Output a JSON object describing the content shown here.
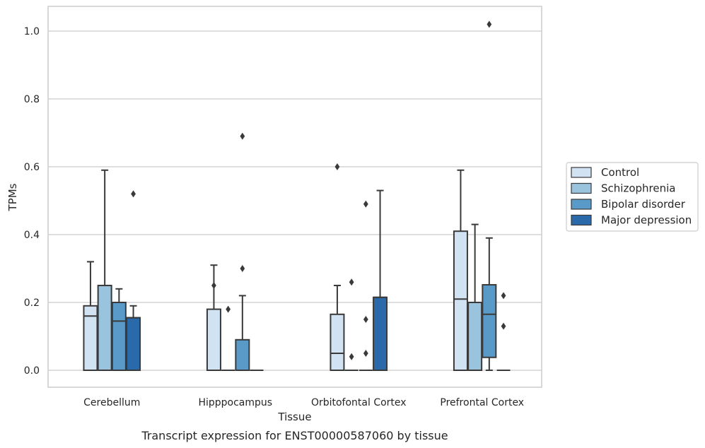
{
  "chart_data": {
    "type": "box",
    "caption": "Transcript expression for ENST00000587060 by tissue",
    "xlabel": "Tissue",
    "ylabel": "TPMs",
    "ylim": [
      -0.05,
      1.07
    ],
    "yticks": [
      "0.0",
      "0.2",
      "0.4",
      "0.6",
      "0.8",
      "1.0"
    ],
    "grid": "horizontal",
    "legend_position": "right",
    "categories": [
      "Cerebellum",
      "Hipppocampus",
      "Orbitofontal Cortex",
      "Prefrontal Cortex"
    ],
    "series": [
      {
        "name": "Control",
        "color": "#d1e2f2",
        "boxes": [
          {
            "q1": 0.0,
            "median": 0.16,
            "q3": 0.19,
            "whisker_low": 0.0,
            "whisker_high": 0.32,
            "outliers": []
          },
          {
            "q1": 0.0,
            "median": 0.0,
            "q3": 0.18,
            "whisker_low": 0.0,
            "whisker_high": 0.31,
            "outliers": [
              0.25
            ]
          },
          {
            "q1": 0.0,
            "median": 0.05,
            "q3": 0.165,
            "whisker_low": 0.0,
            "whisker_high": 0.25,
            "outliers": [
              0.6
            ]
          },
          {
            "q1": 0.0,
            "median": 0.21,
            "q3": 0.41,
            "whisker_low": 0.0,
            "whisker_high": 0.59,
            "outliers": []
          }
        ]
      },
      {
        "name": "Schizophrenia",
        "color": "#9ac4de",
        "boxes": [
          {
            "q1": 0.0,
            "median": 0.25,
            "q3": 0.25,
            "whisker_low": 0.0,
            "whisker_high": 0.59,
            "outliers": []
          },
          {
            "q1": 0.0,
            "median": 0.0,
            "q3": 0.0,
            "whisker_low": 0.0,
            "whisker_high": 0.0,
            "outliers": [
              0.18
            ]
          },
          {
            "q1": 0.0,
            "median": 0.0,
            "q3": 0.0,
            "whisker_low": 0.0,
            "whisker_high": 0.0,
            "outliers": [
              0.26,
              0.04
            ]
          },
          {
            "q1": 0.0,
            "median": 0.2,
            "q3": 0.2,
            "whisker_low": 0.0,
            "whisker_high": 0.43,
            "outliers": []
          }
        ]
      },
      {
        "name": "Bipolar disorder",
        "color": "#5a9ac8",
        "boxes": [
          {
            "q1": 0.0,
            "median": 0.145,
            "q3": 0.2,
            "whisker_low": 0.0,
            "whisker_high": 0.24,
            "outliers": []
          },
          {
            "q1": 0.0,
            "median": 0.0,
            "q3": 0.09,
            "whisker_low": 0.0,
            "whisker_high": 0.22,
            "outliers": [
              0.3,
              0.69
            ]
          },
          {
            "q1": 0.0,
            "median": 0.0,
            "q3": 0.0,
            "whisker_low": 0.0,
            "whisker_high": 0.0,
            "outliers": [
              0.49,
              0.15,
              0.05
            ]
          },
          {
            "q1": 0.038,
            "median": 0.165,
            "q3": 0.252,
            "whisker_low": 0.0,
            "whisker_high": 0.39,
            "outliers": [
              1.02
            ]
          }
        ]
      },
      {
        "name": "Major depression",
        "color": "#2a6aab",
        "boxes": [
          {
            "q1": 0.0,
            "median": 0.155,
            "q3": 0.155,
            "whisker_low": 0.0,
            "whisker_high": 0.19,
            "outliers": [
              0.52
            ]
          },
          {
            "q1": 0.0,
            "median": 0.0,
            "q3": 0.0,
            "whisker_low": 0.0,
            "whisker_high": 0.0,
            "outliers": []
          },
          {
            "q1": 0.0,
            "median": 0.215,
            "q3": 0.215,
            "whisker_low": 0.0,
            "whisker_high": 0.53,
            "outliers": []
          },
          {
            "q1": 0.0,
            "median": 0.0,
            "q3": 0.0,
            "whisker_low": 0.0,
            "whisker_high": 0.0,
            "outliers": [
              0.22,
              0.13
            ]
          }
        ]
      }
    ]
  }
}
